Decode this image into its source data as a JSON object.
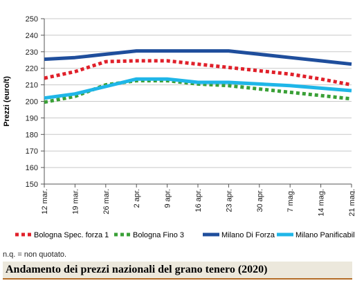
{
  "chart_data": {
    "type": "line",
    "title": "Andamento dei prezzi nazionali del grano tenero (2020)",
    "ylabel": "Prezzi (euro/t)",
    "xlabel": "",
    "ylim": [
      150,
      250
    ],
    "yticks": [
      150,
      160,
      170,
      180,
      190,
      200,
      210,
      220,
      230,
      240,
      250
    ],
    "grid": "horizontal",
    "legend_placement": "bottom",
    "categories": [
      "12 mar.",
      "19 mar.",
      "26 mar.",
      "2 apr.",
      "9 apr.",
      "16 apr.",
      "23 apr.",
      "30 apr.",
      "7 mag.",
      "14 mag.",
      "21 mag."
    ],
    "series": [
      {
        "name": "Bologna Spec. forza 1",
        "color": "#e0202a",
        "style": "dotted",
        "values": [
          214,
          218,
          224,
          224.5,
          224.5,
          222.5,
          220.5,
          218.5,
          216.5,
          213.5,
          210
        ]
      },
      {
        "name": "Bologna Fino 3",
        "color": "#3aa037",
        "style": "dotted",
        "values": [
          199.5,
          203,
          210,
          212.5,
          212.5,
          210.5,
          209.5,
          207.5,
          205.5,
          203.5,
          201.5
        ]
      },
      {
        "name": "Milano Di Forza",
        "color": "#1f4e9c",
        "style": "solid",
        "values": [
          225.5,
          226.5,
          228.5,
          230.5,
          230.5,
          230.5,
          230.5,
          228.5,
          226.5,
          224.5,
          222.5
        ]
      },
      {
        "name": "Milano Panificabile",
        "color": "#1fb6e8",
        "style": "solid",
        "values": [
          202,
          204.5,
          209,
          213.5,
          213.5,
          211.5,
          211.5,
          210.5,
          209.5,
          208,
          206.5
        ]
      }
    ]
  },
  "note": "n.q. = non quotato."
}
